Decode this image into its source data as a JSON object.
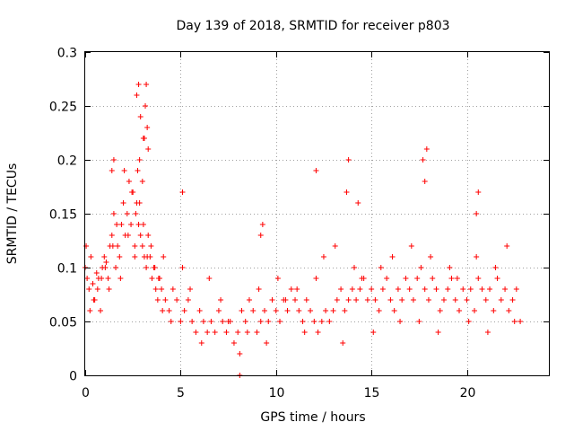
{
  "chart_data": {
    "type": "scatter",
    "title": "Day 139 of 2018, SRMTID for receiver p803",
    "xlabel": "GPS time / hours",
    "ylabel": "SRMTID / TECUs",
    "xlim": [
      0,
      24.3
    ],
    "ylim": [
      0,
      0.3
    ],
    "x_ticks": [
      0,
      5,
      10,
      15,
      20
    ],
    "y_ticks": [
      0,
      0.05,
      0.1,
      0.15,
      0.2,
      0.25,
      0.3
    ],
    "x_tick_labels": [
      "0",
      "5",
      "10",
      "15",
      "20"
    ],
    "y_tick_labels": [
      "0",
      "0.05",
      "0.1",
      "0.15",
      "0.2",
      "0.25",
      "0.3"
    ],
    "grid": true,
    "marker": "+",
    "color": "#ff0000",
    "series": [
      {
        "name": "SRMTID",
        "x": [
          0.0,
          0.1,
          0.2,
          0.3,
          0.4,
          0.5,
          0.6,
          0.7,
          0.8,
          0.9,
          1.0,
          1.1,
          1.2,
          1.3,
          1.4,
          1.5,
          1.6,
          1.7,
          1.8,
          1.9,
          2.0,
          2.1,
          2.2,
          2.3,
          2.4,
          2.5,
          2.6,
          2.7,
          2.8,
          2.9,
          3.0,
          3.1,
          3.2,
          3.3,
          3.4,
          3.5,
          3.6,
          3.7,
          3.8,
          3.9,
          4.0,
          4.2,
          4.4,
          4.6,
          4.8,
          5.0,
          5.2,
          5.4,
          5.6,
          5.8,
          6.0,
          6.2,
          6.4,
          6.6,
          6.8,
          7.0,
          7.2,
          7.4,
          7.6,
          7.8,
          8.0,
          8.2,
          8.4,
          8.6,
          8.8,
          9.0,
          9.2,
          9.4,
          9.6,
          9.8,
          10.0,
          10.2,
          10.4,
          10.6,
          10.8,
          11.0,
          11.2,
          11.4,
          11.6,
          11.8,
          12.0,
          12.2,
          12.4,
          12.6,
          12.8,
          13.0,
          13.2,
          13.4,
          13.6,
          13.8,
          14.0,
          14.2,
          14.4,
          14.6,
          14.8,
          15.0,
          15.2,
          15.4,
          15.6,
          15.8,
          16.0,
          16.2,
          16.4,
          16.6,
          16.8,
          17.0,
          17.2,
          17.4,
          17.6,
          17.8,
          18.0,
          18.2,
          18.4,
          18.6,
          18.8,
          19.0,
          19.2,
          19.4,
          19.6,
          19.8,
          20.0,
          20.2,
          20.4,
          20.6,
          20.8,
          21.0,
          21.2,
          21.4,
          21.6,
          21.8,
          22.0,
          22.2,
          22.4,
          22.6,
          22.8,
          0.05,
          0.25,
          0.45,
          0.65,
          0.85,
          1.05,
          1.25,
          1.45,
          1.65,
          1.85,
          2.05,
          2.25,
          2.45,
          2.65,
          2.85,
          3.05,
          3.25,
          3.45,
          3.65,
          3.85,
          4.05,
          4.5,
          5.1,
          5.5,
          6.1,
          6.5,
          7.1,
          7.5,
          8.1,
          8.5,
          9.1,
          9.5,
          10.1,
          10.5,
          11.1,
          11.5,
          12.1,
          12.5,
          13.1,
          13.5,
          14.1,
          14.5,
          15.1,
          15.5,
          16.1,
          16.5,
          17.1,
          17.5,
          18.1,
          18.5,
          19.1,
          19.5,
          20.1,
          20.5,
          21.1,
          21.5,
          22.1,
          22.5,
          2.6,
          2.7,
          2.8,
          2.9,
          3.1,
          3.15,
          3.2,
          3.25,
          3.3,
          2.75,
          2.85,
          3.0,
          3.05,
          13.7,
          13.8,
          17.8,
          17.9,
          17.7,
          12.1,
          14.3,
          20.5,
          20.6,
          5.1,
          9.3,
          9.2,
          4.1,
          1.4,
          1.5,
          8.1
        ],
        "y": [
          0.1,
          0.09,
          0.08,
          0.11,
          0.085,
          0.07,
          0.095,
          0.09,
          0.06,
          0.1,
          0.11,
          0.105,
          0.09,
          0.12,
          0.13,
          0.15,
          0.1,
          0.12,
          0.11,
          0.14,
          0.16,
          0.13,
          0.15,
          0.18,
          0.14,
          0.17,
          0.12,
          0.16,
          0.14,
          0.13,
          0.12,
          0.11,
          0.1,
          0.13,
          0.11,
          0.09,
          0.1,
          0.08,
          0.07,
          0.09,
          0.08,
          0.07,
          0.06,
          0.08,
          0.07,
          0.05,
          0.06,
          0.07,
          0.05,
          0.04,
          0.06,
          0.05,
          0.04,
          0.05,
          0.04,
          0.06,
          0.05,
          0.04,
          0.05,
          0.03,
          0.04,
          0.06,
          0.05,
          0.07,
          0.06,
          0.04,
          0.05,
          0.06,
          0.05,
          0.07,
          0.06,
          0.05,
          0.07,
          0.06,
          0.08,
          0.07,
          0.06,
          0.05,
          0.07,
          0.06,
          0.05,
          0.04,
          0.05,
          0.06,
          0.05,
          0.06,
          0.07,
          0.08,
          0.06,
          0.07,
          0.08,
          0.07,
          0.08,
          0.09,
          0.07,
          0.08,
          0.07,
          0.06,
          0.08,
          0.09,
          0.07,
          0.06,
          0.08,
          0.07,
          0.09,
          0.08,
          0.07,
          0.09,
          0.1,
          0.08,
          0.07,
          0.09,
          0.08,
          0.06,
          0.07,
          0.08,
          0.09,
          0.07,
          0.06,
          0.08,
          0.07,
          0.08,
          0.06,
          0.09,
          0.08,
          0.07,
          0.08,
          0.06,
          0.09,
          0.07,
          0.08,
          0.06,
          0.07,
          0.08,
          0.05,
          0.12,
          0.06,
          0.07,
          0.08,
          0.09,
          0.1,
          0.08,
          0.12,
          0.14,
          0.09,
          0.19,
          0.13,
          0.17,
          0.15,
          0.16,
          0.14,
          0.11,
          0.12,
          0.1,
          0.09,
          0.06,
          0.05,
          0.1,
          0.08,
          0.03,
          0.09,
          0.07,
          0.05,
          0.02,
          0.04,
          0.08,
          0.03,
          0.09,
          0.07,
          0.08,
          0.04,
          0.09,
          0.11,
          0.12,
          0.03,
          0.1,
          0.09,
          0.04,
          0.1,
          0.11,
          0.05,
          0.12,
          0.05,
          0.11,
          0.04,
          0.1,
          0.09,
          0.05,
          0.11,
          0.04,
          0.1,
          0.12,
          0.05,
          0.11,
          0.26,
          0.27,
          0.24,
          0.22,
          0.25,
          0.27,
          0.23,
          0.21,
          0.19,
          0.2,
          0.18,
          0.22,
          0.17,
          0.2,
          0.18,
          0.21,
          0.2,
          0.19,
          0.16,
          0.15,
          0.17,
          0.17,
          0.14,
          0.13,
          0.11,
          0.19,
          0.2,
          0.0
        ]
      }
    ]
  }
}
